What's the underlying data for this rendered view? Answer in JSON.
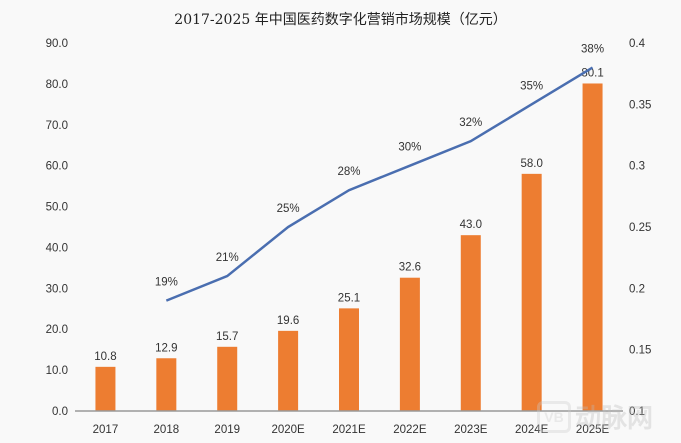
{
  "chart_data": {
    "type": "bar+line",
    "title": "2017-2025 年中国医药数字化营销市场规模（亿元）",
    "categories": [
      "2017",
      "2018",
      "2019",
      "2020E",
      "2021E",
      "2022E",
      "2023E",
      "2024E",
      "2025E"
    ],
    "series": [
      {
        "type": "bar",
        "axis": "left",
        "color": "#ed7d31",
        "values": [
          10.8,
          12.9,
          15.7,
          19.6,
          25.1,
          32.6,
          43.0,
          58.0,
          80.1
        ],
        "labels": [
          "10.8",
          "12.9",
          "15.7",
          "19.6",
          "25.1",
          "32.6",
          "43.0",
          "58.0",
          "80.1"
        ]
      },
      {
        "type": "line",
        "axis": "right",
        "color": "#4a6eb0",
        "values": [
          null,
          0.19,
          0.21,
          0.25,
          0.28,
          0.3,
          0.32,
          0.35,
          0.38
        ],
        "labels": [
          "",
          "19%",
          "21%",
          "25%",
          "28%",
          "30%",
          "32%",
          "35%",
          "38%"
        ]
      }
    ],
    "left_axis": {
      "ylim": [
        0,
        90
      ],
      "ticks": [
        "0.0",
        "10.0",
        "20.0",
        "30.0",
        "40.0",
        "50.0",
        "60.0",
        "70.0",
        "80.0",
        "90.0"
      ]
    },
    "right_axis": {
      "ylim": [
        0.1,
        0.4
      ],
      "ticks": [
        "0.1",
        "0.15",
        "0.2",
        "0.25",
        "0.3",
        "0.35",
        "0.4"
      ]
    },
    "grid": false,
    "legend": "none"
  },
  "watermark": {
    "logo": "VB",
    "text": "动脉网"
  }
}
